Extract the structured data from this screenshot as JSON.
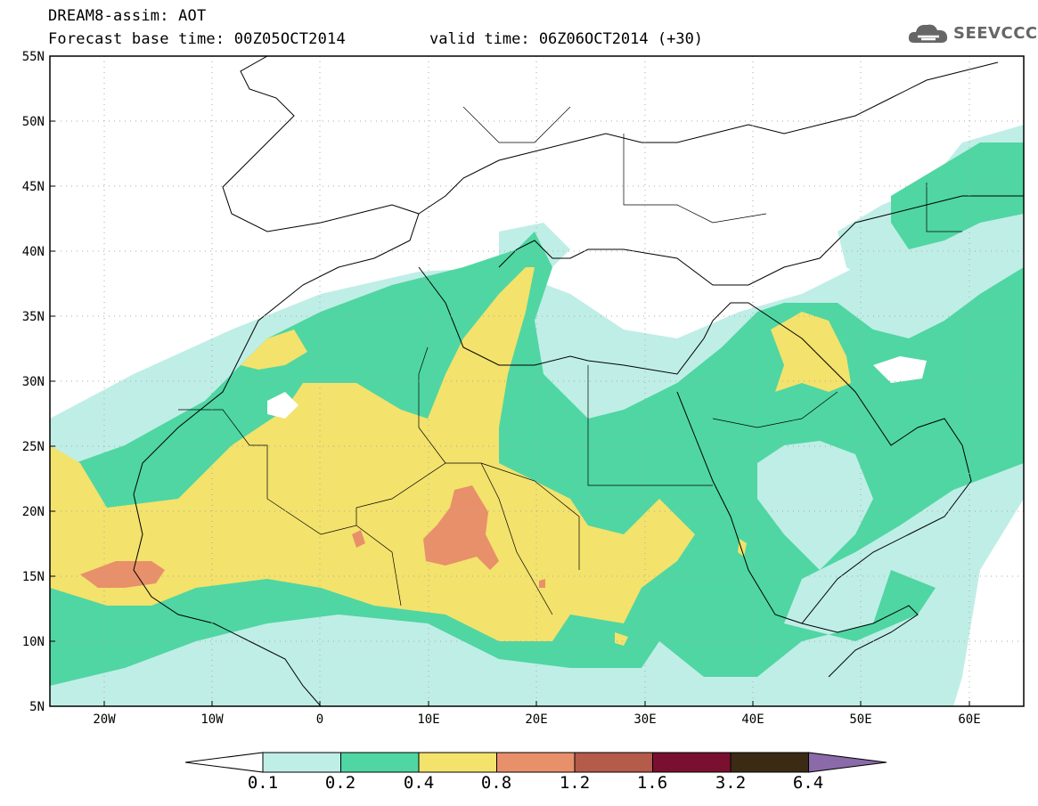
{
  "header": {
    "title": "DREAM8-assim: AOT",
    "base_time": "Forecast base time: 00Z05OCT2014",
    "valid_time": "valid time: 06Z06OCT2014 (+30)"
  },
  "logo": {
    "text": "SEEVCCC",
    "icon": "cloud-icon"
  },
  "axes": {
    "lat_labels": [
      "55N",
      "50N",
      "45N",
      "40N",
      "35N",
      "30N",
      "25N",
      "20N",
      "15N",
      "10N",
      "5N"
    ],
    "lon_labels": [
      "20W",
      "10W",
      "0",
      "10E",
      "20E",
      "30E",
      "40E",
      "50E",
      "60E"
    ],
    "lon_range": [
      -25,
      65
    ],
    "lat_range": [
      5,
      55
    ]
  },
  "colorbar": {
    "levels": [
      "0.1",
      "0.2",
      "0.4",
      "0.8",
      "1.2",
      "1.6",
      "3.2",
      "6.4"
    ],
    "colors": [
      "#bfeee6",
      "#4fd6a3",
      "#f3e26c",
      "#e8906a",
      "#b45b4a",
      "#7a1030",
      "#3b2a14",
      "#8a6aa8"
    ]
  },
  "map": {
    "ocean_color": "#ffffff",
    "border_color": "#000000"
  }
}
